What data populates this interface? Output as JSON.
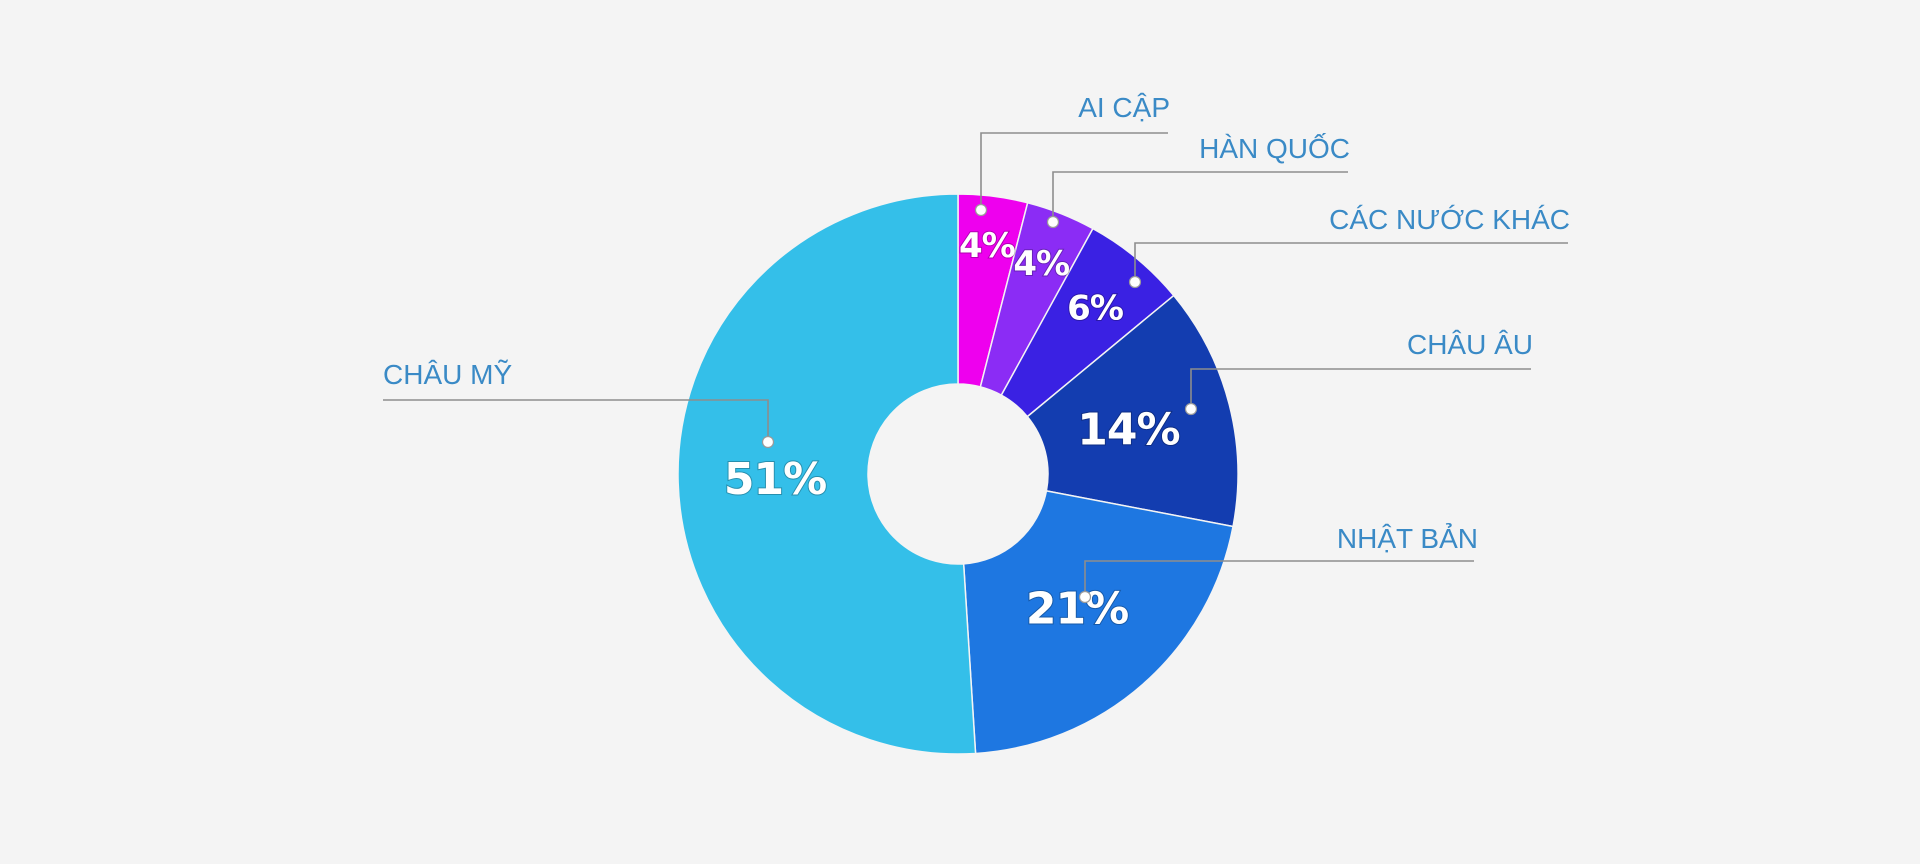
{
  "chart_data": {
    "type": "pie",
    "variant": "donut",
    "start": "top",
    "direction": "clockwise",
    "series": [
      {
        "values": [
          4,
          4,
          6,
          14,
          21,
          51
        ],
        "value_labels": [
          "4%",
          "4%",
          "6%",
          "14%",
          "21%",
          "51%"
        ]
      }
    ],
    "categories": [
      "AI CẬP",
      "HÀN QUỐC",
      "CÁC NƯỚC KHÁC",
      "CHÂU ÂU",
      "NHẬT BẢN",
      "CHÂU MỸ"
    ],
    "colors": [
      "#ee00ee",
      "#8b2cf5",
      "#3a21e3",
      "#133db0",
      "#1e77e1",
      "#34bfe9"
    ]
  }
}
